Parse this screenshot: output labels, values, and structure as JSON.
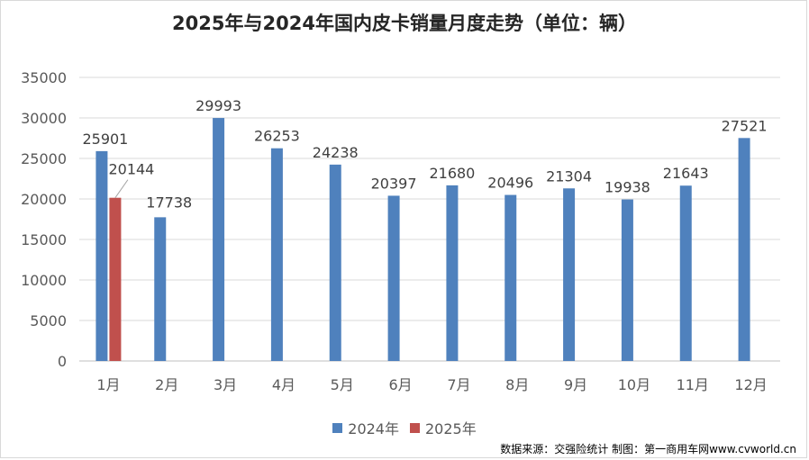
{
  "chart_data": {
    "type": "bar",
    "title": "2025年与2024年国内皮卡销量月度走势（单位：辆）",
    "categories": [
      "1月",
      "2月",
      "3月",
      "4月",
      "5月",
      "6月",
      "7月",
      "8月",
      "9月",
      "10月",
      "11月",
      "12月"
    ],
    "series": [
      {
        "name": "2024年",
        "color": "#4f81bd",
        "values": [
          25901,
          17738,
          29993,
          26253,
          24238,
          20397,
          21680,
          20496,
          21304,
          19938,
          21643,
          27521
        ]
      },
      {
        "name": "2025年",
        "color": "#c0504d",
        "values": [
          20144,
          null,
          null,
          null,
          null,
          null,
          null,
          null,
          null,
          null,
          null,
          null
        ]
      }
    ],
    "ylim": [
      0,
      35000
    ],
    "yticks": [
      0,
      5000,
      10000,
      15000,
      20000,
      25000,
      30000,
      35000
    ],
    "xlabel": "",
    "ylabel": "",
    "grid": true,
    "legend": "bottom-center"
  },
  "source_note": "数据来源：交强险统计 制图：第一商用车网www.cvworld.cn"
}
